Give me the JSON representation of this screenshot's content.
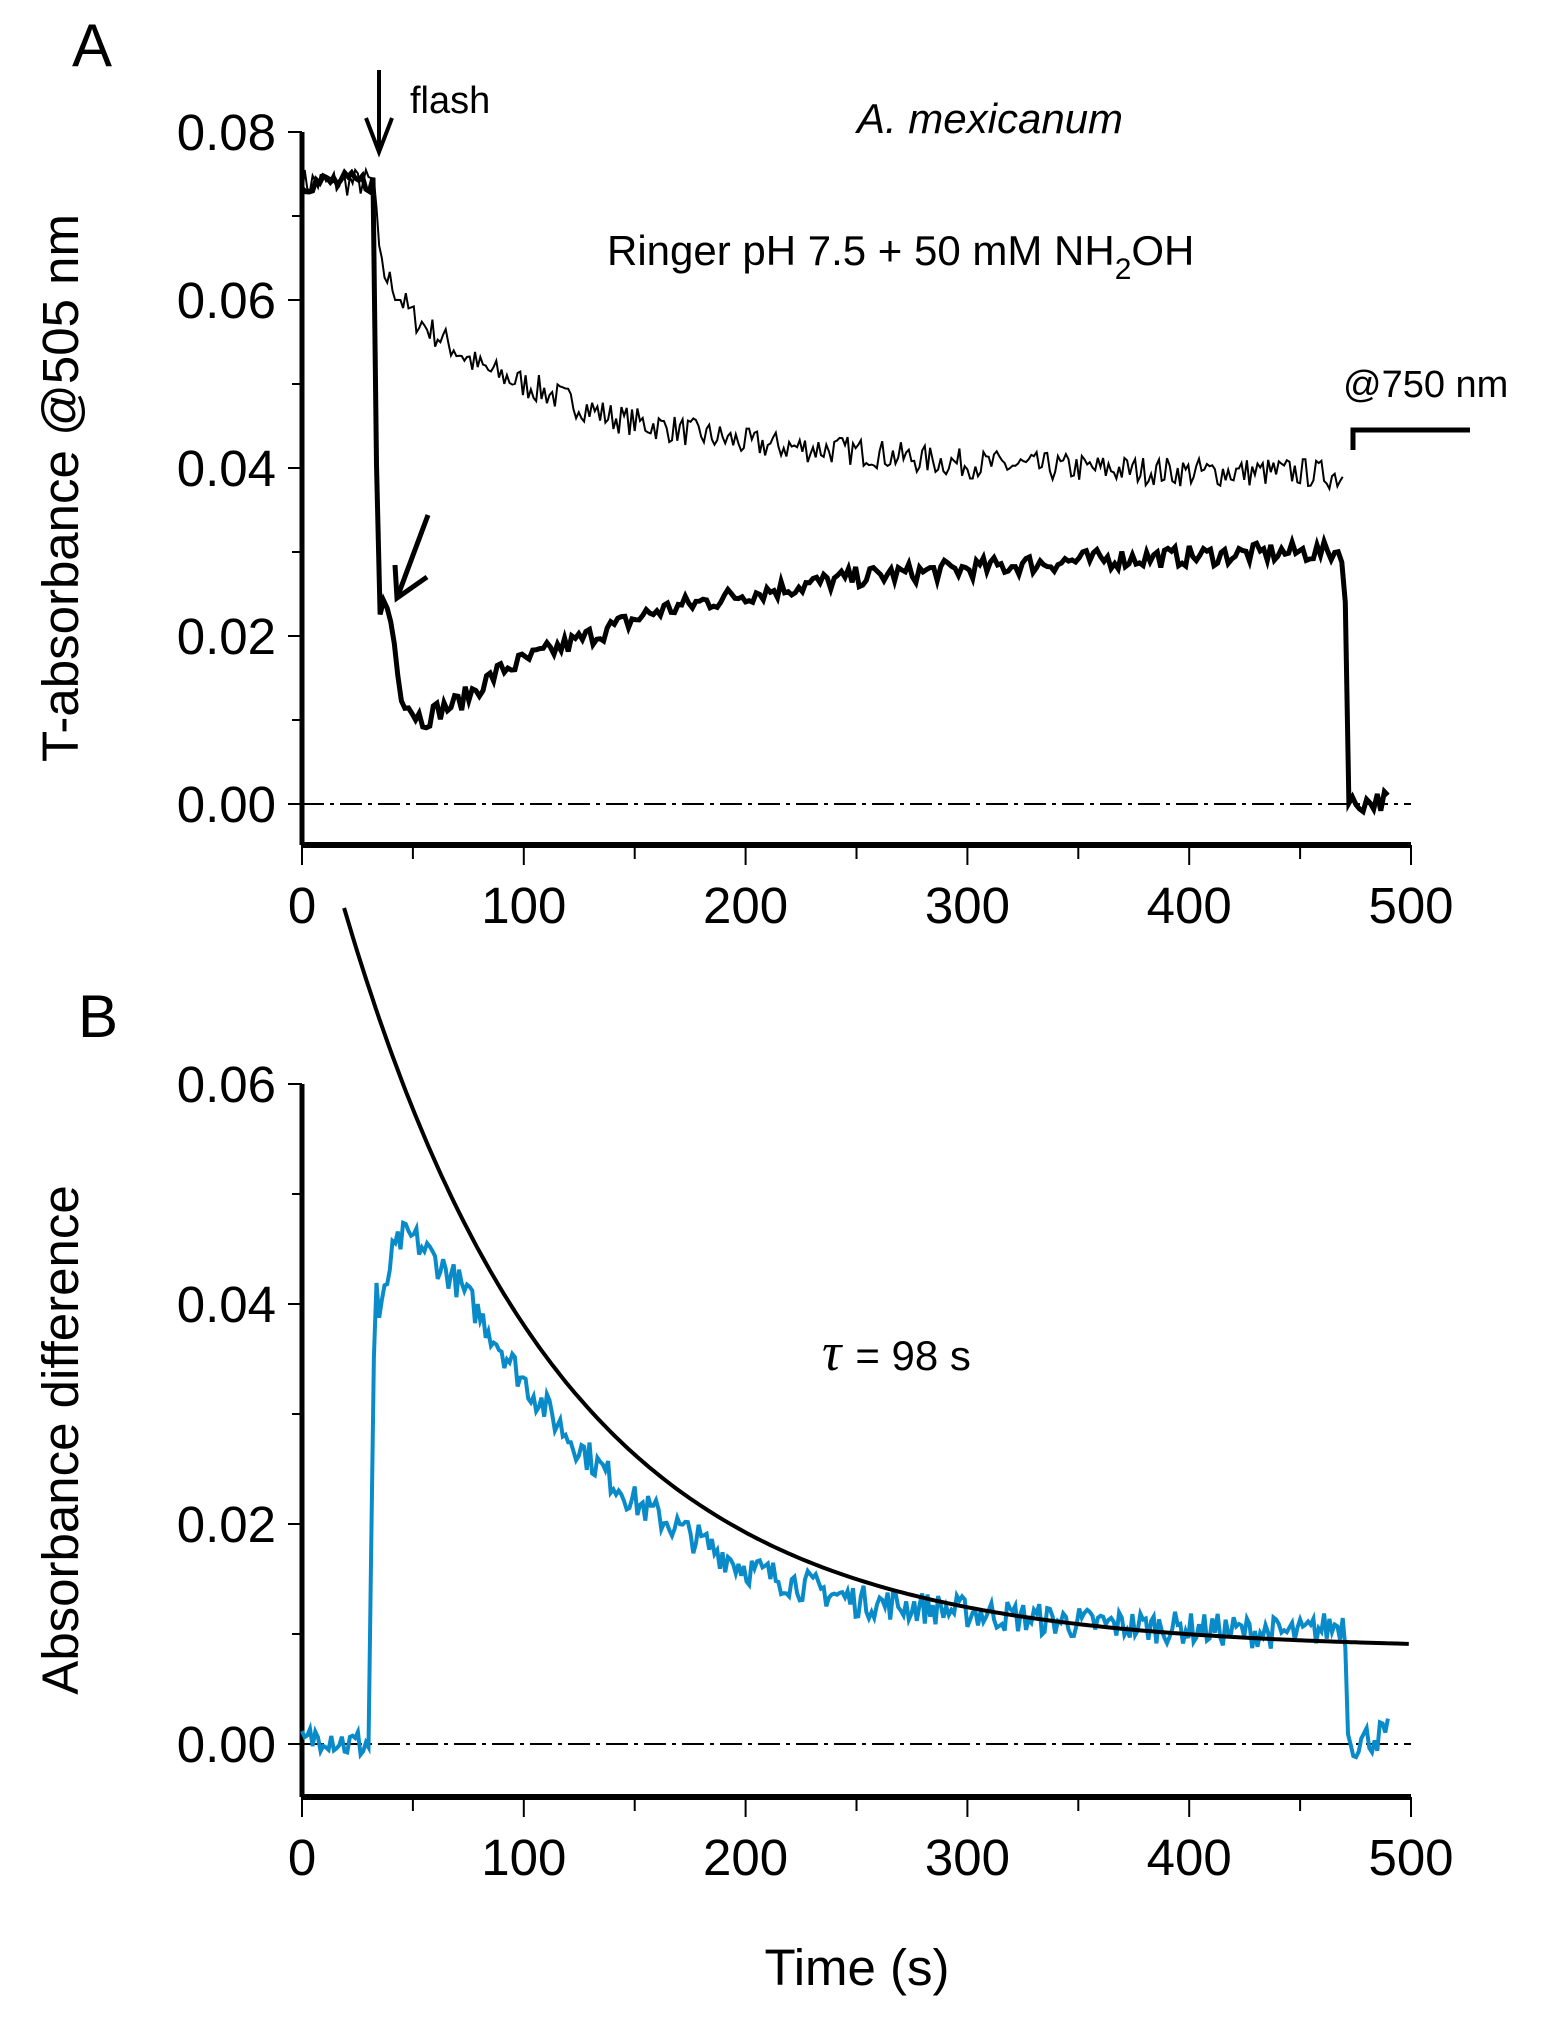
{
  "chart_data": [
    {
      "panel": "A",
      "type": "line",
      "title": "",
      "xlabel": "",
      "ylabel": "T-absorbance @505 nm",
      "xlim": [
        0,
        500
      ],
      "ylim": [
        0,
        0.08
      ],
      "x_ticks": [
        "0",
        "100",
        "200",
        "300",
        "400",
        "500"
      ],
      "y_ticks": [
        "0.00",
        "0.02",
        "0.04",
        "0.06",
        "0.08"
      ],
      "grid": false,
      "annotations": {
        "species": "A. mexicanum",
        "condition_prefix": "Ringer pH 7.5 + 50 mM NH",
        "condition_sub": "2",
        "condition_suffix": "OH",
        "flash": "flash",
        "ref_wavelength": "@750 nm"
      },
      "series": [
        {
          "name": "upper trace (thin)",
          "x": [
            0,
            33,
            35,
            40,
            50,
            60,
            70,
            80,
            90,
            100,
            120,
            140,
            160,
            180,
            200,
            220,
            250,
            280,
            300,
            350,
            400,
            450,
            470
          ],
          "values": [
            0.074,
            0.074,
            0.064,
            0.062,
            0.058,
            0.056,
            0.054,
            0.052,
            0.051,
            0.05,
            0.048,
            0.046,
            0.045,
            0.044,
            0.043,
            0.0425,
            0.042,
            0.041,
            0.0405,
            0.04,
            0.0395,
            0.0395,
            0.039
          ]
        },
        {
          "name": "lower trace (thick)",
          "x": [
            0,
            33,
            34,
            36,
            40,
            45,
            50,
            55,
            60,
            70,
            80,
            90,
            100,
            120,
            140,
            160,
            180,
            200,
            250,
            300,
            350,
            400,
            450,
            470,
            472,
            490
          ],
          "values": [
            0.074,
            0.074,
            0.018,
            0.025,
            0.022,
            0.013,
            0.011,
            0.01,
            0.011,
            0.012,
            0.014,
            0.016,
            0.017,
            0.019,
            0.021,
            0.023,
            0.024,
            0.025,
            0.027,
            0.028,
            0.029,
            0.0295,
            0.03,
            0.03,
            0.0,
            0.0005
          ]
        }
      ],
      "baseline": 0.0
    },
    {
      "panel": "B",
      "type": "line",
      "title": "",
      "xlabel": "Time (s)",
      "ylabel": "Absorbance difference",
      "xlim": [
        0,
        500
      ],
      "ylim": [
        0,
        0.06
      ],
      "x_ticks": [
        "0",
        "100",
        "200",
        "300",
        "400",
        "500"
      ],
      "y_ticks": [
        "0.00",
        "0.02",
        "0.04",
        "0.06"
      ],
      "grid": false,
      "annotations": {
        "tau_symbol": "τ",
        "tau_text": "= 98 s"
      },
      "series": [
        {
          "name": "difference trace",
          "color": "#0a8bc9",
          "x": [
            0,
            10,
            20,
            30,
            33,
            35,
            40,
            45,
            50,
            60,
            70,
            80,
            100,
            120,
            150,
            200,
            250,
            300,
            350,
            400,
            450,
            470,
            472,
            490
          ],
          "values": [
            0.0,
            0.001,
            0.0,
            0.0,
            0.044,
            0.038,
            0.044,
            0.046,
            0.046,
            0.044,
            0.042,
            0.039,
            0.033,
            0.028,
            0.022,
            0.016,
            0.013,
            0.012,
            0.011,
            0.0105,
            0.01,
            0.011,
            0.0,
            0.001
          ]
        },
        {
          "name": "exponential fit",
          "color": "#000000",
          "fit": {
            "tau_s": 98,
            "A0": 0.0674,
            "offset": 0.0086,
            "x_start": 19,
            "x_end": 500
          }
        }
      ],
      "baseline": 0.0
    }
  ]
}
